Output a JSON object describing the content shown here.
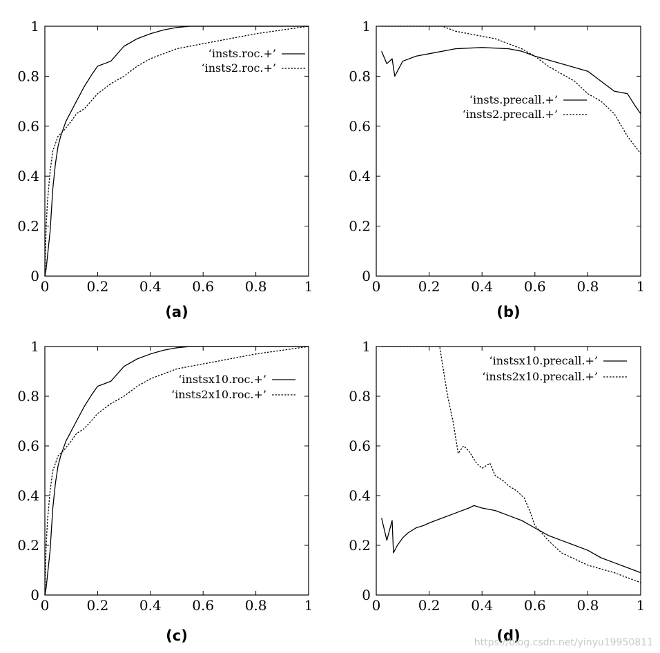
{
  "watermark": "https://blog.csdn.net/yinyu19950811",
  "chart_data": [
    {
      "type": "line",
      "caption": "(a)",
      "xlim": [
        0,
        1
      ],
      "ylim": [
        0,
        1
      ],
      "xticks": [
        0,
        0.2,
        0.4,
        0.6,
        0.8,
        1
      ],
      "yticks": [
        0,
        0.2,
        0.4,
        0.6,
        0.8,
        1
      ],
      "xtick_labels": [
        "0",
        "0.2",
        "0.4",
        "0.6",
        "0.8",
        "1"
      ],
      "ytick_labels": [
        "0",
        "0.2",
        "0.4",
        "0.6",
        "0.8",
        "1"
      ],
      "legend_position": "top-right",
      "series": [
        {
          "name": "‘insts.roc.+’",
          "style": "solid",
          "x": [
            0,
            0.005,
            0.01,
            0.02,
            0.03,
            0.04,
            0.05,
            0.06,
            0.08,
            0.1,
            0.12,
            0.15,
            0.18,
            0.2,
            0.25,
            0.3,
            0.35,
            0.4,
            0.45,
            0.5,
            0.55,
            0.6,
            0.8,
            1.0
          ],
          "y": [
            0,
            0.03,
            0.08,
            0.18,
            0.35,
            0.45,
            0.52,
            0.56,
            0.62,
            0.66,
            0.7,
            0.76,
            0.81,
            0.84,
            0.86,
            0.92,
            0.95,
            0.97,
            0.985,
            0.995,
            1,
            1,
            1,
            1
          ]
        },
        {
          "name": "‘insts2.roc.+’",
          "style": "dashed",
          "x": [
            0,
            0.005,
            0.01,
            0.02,
            0.03,
            0.04,
            0.05,
            0.07,
            0.1,
            0.12,
            0.15,
            0.2,
            0.25,
            0.3,
            0.35,
            0.4,
            0.45,
            0.5,
            0.6,
            0.7,
            0.8,
            0.9,
            1.0
          ],
          "y": [
            0,
            0.2,
            0.3,
            0.42,
            0.5,
            0.53,
            0.56,
            0.58,
            0.62,
            0.65,
            0.67,
            0.73,
            0.77,
            0.8,
            0.84,
            0.87,
            0.89,
            0.91,
            0.93,
            0.95,
            0.97,
            0.985,
            1
          ]
        }
      ]
    },
    {
      "type": "line",
      "caption": "(b)",
      "xlim": [
        0,
        1
      ],
      "ylim": [
        0,
        1
      ],
      "xticks": [
        0,
        0.2,
        0.4,
        0.6,
        0.8,
        1
      ],
      "yticks": [
        0,
        0.2,
        0.4,
        0.6,
        0.8,
        1
      ],
      "xtick_labels": [
        "0",
        "0.2",
        "0.4",
        "0.6",
        "0.8",
        "1"
      ],
      "ytick_labels": [
        "0",
        "0.2",
        "0.4",
        "0.6",
        "0.8",
        "1"
      ],
      "legend_position": "center-right",
      "series": [
        {
          "name": "‘insts.precall.+’",
          "style": "solid",
          "x": [
            0.02,
            0.04,
            0.06,
            0.07,
            0.1,
            0.15,
            0.2,
            0.3,
            0.4,
            0.5,
            0.55,
            0.6,
            0.7,
            0.8,
            0.85,
            0.9,
            0.95,
            0.98,
            1.0
          ],
          "y": [
            0.9,
            0.85,
            0.87,
            0.8,
            0.86,
            0.88,
            0.89,
            0.91,
            0.915,
            0.91,
            0.9,
            0.88,
            0.85,
            0.82,
            0.78,
            0.74,
            0.73,
            0.68,
            0.65
          ]
        },
        {
          "name": "‘insts2.precall.+’",
          "style": "dashed",
          "x": [
            0.02,
            0.1,
            0.2,
            0.25,
            0.3,
            0.35,
            0.4,
            0.45,
            0.5,
            0.55,
            0.6,
            0.65,
            0.7,
            0.75,
            0.8,
            0.85,
            0.9,
            0.95,
            1.0
          ],
          "y": [
            1,
            1,
            1,
            1,
            0.98,
            0.97,
            0.96,
            0.95,
            0.93,
            0.91,
            0.88,
            0.84,
            0.81,
            0.78,
            0.73,
            0.7,
            0.65,
            0.56,
            0.49
          ]
        }
      ]
    },
    {
      "type": "line",
      "caption": "(c)",
      "xlim": [
        0,
        1
      ],
      "ylim": [
        0,
        1
      ],
      "xticks": [
        0,
        0.2,
        0.4,
        0.6,
        0.8,
        1
      ],
      "yticks": [
        0,
        0.2,
        0.4,
        0.6,
        0.8,
        1
      ],
      "xtick_labels": [
        "0",
        "0.2",
        "0.4",
        "0.6",
        "0.8",
        "1"
      ],
      "ytick_labels": [
        "0",
        "0.2",
        "0.4",
        "0.6",
        "0.8",
        "1"
      ],
      "legend_position": "top-right",
      "series": [
        {
          "name": "‘instsx10.roc.+’",
          "style": "solid",
          "x": [
            0,
            0.005,
            0.01,
            0.02,
            0.03,
            0.04,
            0.05,
            0.06,
            0.08,
            0.1,
            0.12,
            0.15,
            0.18,
            0.2,
            0.25,
            0.3,
            0.35,
            0.4,
            0.45,
            0.5,
            0.55,
            0.6,
            0.8,
            1.0
          ],
          "y": [
            0,
            0.03,
            0.08,
            0.18,
            0.35,
            0.45,
            0.52,
            0.56,
            0.62,
            0.66,
            0.7,
            0.76,
            0.81,
            0.84,
            0.86,
            0.92,
            0.95,
            0.97,
            0.985,
            0.995,
            1,
            1,
            1,
            1
          ]
        },
        {
          "name": "‘insts2x10.roc.+’",
          "style": "dashed",
          "x": [
            0,
            0.005,
            0.01,
            0.02,
            0.03,
            0.04,
            0.05,
            0.07,
            0.1,
            0.12,
            0.15,
            0.2,
            0.25,
            0.3,
            0.35,
            0.4,
            0.45,
            0.5,
            0.6,
            0.7,
            0.8,
            0.9,
            1.0
          ],
          "y": [
            0,
            0.2,
            0.3,
            0.42,
            0.5,
            0.53,
            0.56,
            0.58,
            0.62,
            0.65,
            0.67,
            0.73,
            0.77,
            0.8,
            0.84,
            0.87,
            0.89,
            0.91,
            0.93,
            0.95,
            0.97,
            0.985,
            1
          ]
        }
      ]
    },
    {
      "type": "line",
      "caption": "(d)",
      "xlim": [
        0,
        1
      ],
      "ylim": [
        0,
        1
      ],
      "xticks": [
        0,
        0.2,
        0.4,
        0.6,
        0.8,
        1
      ],
      "yticks": [
        0,
        0.2,
        0.4,
        0.6,
        0.8,
        1
      ],
      "xtick_labels": [
        "0",
        "0.2",
        "0.4",
        "0.6",
        "0.8",
        "1"
      ],
      "ytick_labels": [
        "0",
        "0.2",
        "0.4",
        "0.6",
        "0.8",
        "1"
      ],
      "legend_position": "top-right",
      "series": [
        {
          "name": "‘instsx10.precall.+’",
          "style": "solid",
          "x": [
            0.02,
            0.04,
            0.06,
            0.065,
            0.08,
            0.1,
            0.12,
            0.15,
            0.18,
            0.2,
            0.25,
            0.3,
            0.35,
            0.37,
            0.4,
            0.45,
            0.5,
            0.55,
            0.6,
            0.65,
            0.7,
            0.75,
            0.8,
            0.85,
            0.9,
            0.95,
            1.0
          ],
          "y": [
            0.31,
            0.22,
            0.3,
            0.17,
            0.2,
            0.23,
            0.25,
            0.27,
            0.28,
            0.29,
            0.31,
            0.33,
            0.35,
            0.36,
            0.35,
            0.34,
            0.32,
            0.3,
            0.27,
            0.24,
            0.22,
            0.2,
            0.18,
            0.15,
            0.13,
            0.11,
            0.09
          ]
        },
        {
          "name": "‘insts2x10.precall.+’",
          "style": "dashed",
          "x": [
            0.02,
            0.1,
            0.2,
            0.24,
            0.25,
            0.27,
            0.29,
            0.31,
            0.33,
            0.35,
            0.38,
            0.4,
            0.43,
            0.45,
            0.48,
            0.5,
            0.53,
            0.56,
            0.58,
            0.6,
            0.65,
            0.7,
            0.8,
            0.9,
            1.0
          ],
          "y": [
            1,
            1,
            1,
            1,
            0.93,
            0.8,
            0.7,
            0.57,
            0.6,
            0.58,
            0.53,
            0.51,
            0.53,
            0.48,
            0.46,
            0.44,
            0.42,
            0.39,
            0.34,
            0.28,
            0.22,
            0.17,
            0.12,
            0.09,
            0.05
          ]
        }
      ]
    }
  ]
}
